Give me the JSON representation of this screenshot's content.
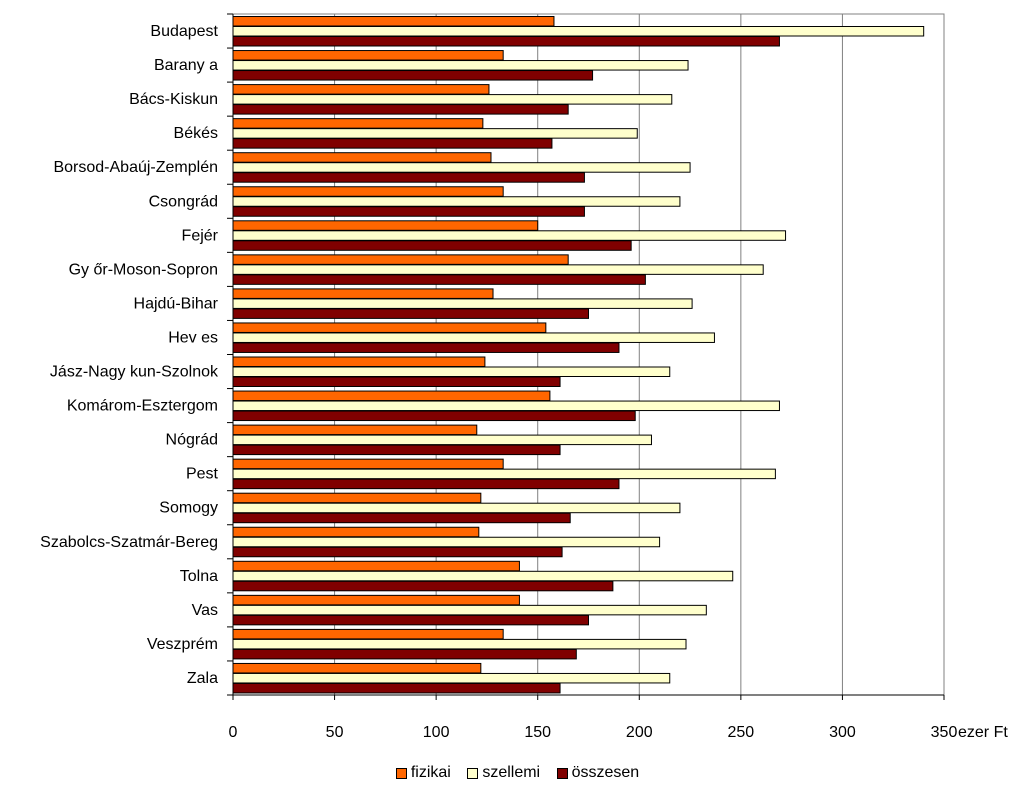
{
  "chart_data": {
    "type": "bar",
    "orientation": "horizontal",
    "categories": [
      "Budapest",
      "Barany a",
      "Bács-Kiskun",
      "Békés",
      "Borsod-Abaúj-Zemplén",
      "Csongrád",
      "Fejér",
      "Gy őr-Moson-Sopron",
      "Hajdú-Bihar",
      "Hev es",
      "Jász-Nagy kun-Szolnok",
      "Komárom-Esztergom",
      "Nógrád",
      "Pest",
      "Somogy",
      "Szabolcs-Szatmár-Bereg",
      "Tolna",
      "Vas",
      "Veszprém",
      "Zala"
    ],
    "series": [
      {
        "name": "fizikai",
        "color": "#ff6600",
        "values": [
          158,
          133,
          126,
          123,
          127,
          133,
          150,
          165,
          128,
          154,
          124,
          156,
          120,
          133,
          122,
          121,
          141,
          141,
          133,
          122
        ]
      },
      {
        "name": "szellemi",
        "color": "#ffffcc",
        "values": [
          340,
          224,
          216,
          199,
          225,
          220,
          272,
          261,
          226,
          237,
          215,
          269,
          206,
          267,
          220,
          210,
          246,
          233,
          223,
          215
        ]
      },
      {
        "name": "összesen",
        "color": "#800000",
        "values": [
          269,
          177,
          165,
          157,
          173,
          173,
          196,
          203,
          175,
          190,
          161,
          198,
          161,
          190,
          166,
          162,
          187,
          175,
          169,
          161
        ]
      }
    ],
    "xlim": [
      0,
      350
    ],
    "xticks": [
      0,
      50,
      100,
      150,
      200,
      250,
      300,
      350
    ],
    "xunit": "ezer Ft",
    "grid": true,
    "legend_position": "bottom"
  }
}
